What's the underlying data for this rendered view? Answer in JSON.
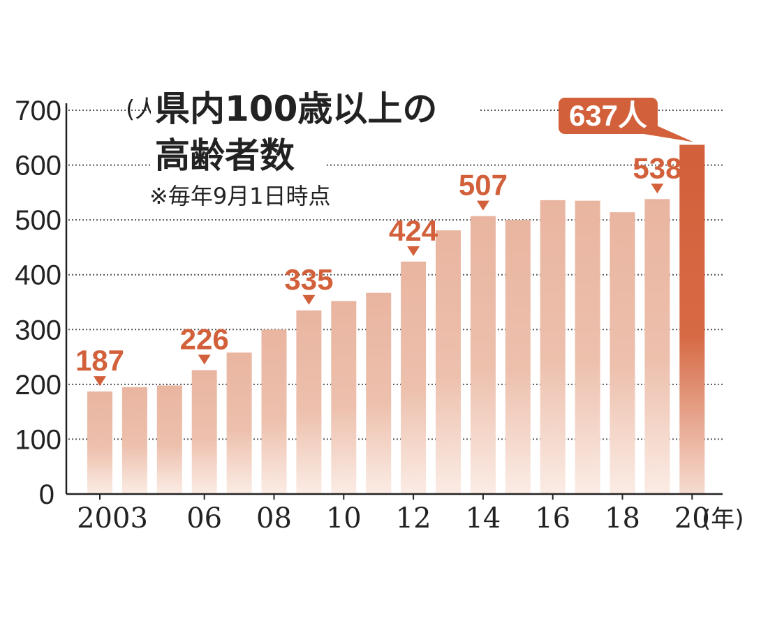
{
  "title_line1": "県内100歳以上の",
  "title_line2": "高齢者数",
  "note": "※毎年9月1日時点",
  "y_unit": "(人)",
  "x_unit": "(年)",
  "colors": {
    "bar": "#e9b5a0",
    "highlight": "#d2603a",
    "label": "#d2603a"
  },
  "chart_data": {
    "type": "bar",
    "x": [
      2003,
      2004,
      2005,
      2006,
      2007,
      2008,
      2009,
      2010,
      2011,
      2012,
      2013,
      2014,
      2015,
      2016,
      2017,
      2018,
      2019,
      2020
    ],
    "values": [
      187,
      195,
      198,
      226,
      258,
      300,
      335,
      352,
      367,
      424,
      481,
      507,
      500,
      536,
      535,
      514,
      538,
      637
    ],
    "ylim": [
      0,
      700
    ],
    "y_ticks": [
      "0",
      "100",
      "200",
      "300",
      "400",
      "500",
      "600",
      "700"
    ],
    "x_tick_labels": [
      {
        "year": 2003,
        "label": "2003"
      },
      {
        "year": 2006,
        "label": "06"
      },
      {
        "year": 2008,
        "label": "08"
      },
      {
        "year": 2010,
        "label": "10"
      },
      {
        "year": 2012,
        "label": "12"
      },
      {
        "year": 2014,
        "label": "14"
      },
      {
        "year": 2016,
        "label": "16"
      },
      {
        "year": 2018,
        "label": "18"
      },
      {
        "year": 2020,
        "label": "20"
      }
    ],
    "data_labels": [
      {
        "year": 2003,
        "text": "187"
      },
      {
        "year": 2006,
        "text": "226"
      },
      {
        "year": 2009,
        "text": "335"
      },
      {
        "year": 2012,
        "text": "424"
      },
      {
        "year": 2014,
        "text": "507"
      },
      {
        "year": 2019,
        "text": "538"
      }
    ],
    "highlight": {
      "year": 2020,
      "text": "637人"
    },
    "grid": true
  }
}
